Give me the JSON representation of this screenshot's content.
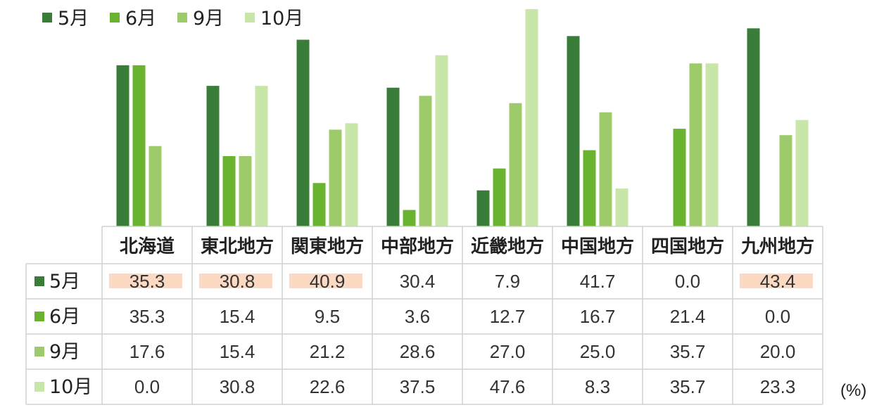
{
  "chart_data": {
    "type": "bar",
    "categories": [
      "北海道",
      "東北地方",
      "関東地方",
      "中部地方",
      "近畿地方",
      "中国地方",
      "四国地方",
      "九州地方"
    ],
    "series": [
      {
        "name": "5月",
        "color": "#3a7d38",
        "values": [
          35.3,
          30.8,
          40.9,
          30.4,
          7.9,
          41.7,
          0.0,
          43.4
        ]
      },
      {
        "name": "6月",
        "color": "#6ab32f",
        "values": [
          35.3,
          15.4,
          9.5,
          3.6,
          12.7,
          16.7,
          21.4,
          0.0
        ]
      },
      {
        "name": "9月",
        "color": "#9dcb6b",
        "values": [
          17.6,
          15.4,
          21.2,
          28.6,
          27.0,
          25.0,
          35.7,
          20.0
        ]
      },
      {
        "name": "10月",
        "color": "#c8e6a8",
        "values": [
          0.0,
          30.8,
          22.6,
          37.5,
          47.6,
          8.3,
          35.7,
          23.3
        ]
      }
    ],
    "ylim": [
      0,
      47.6
    ],
    "unit": "(%)",
    "legend_position": "top-left",
    "highlight_color": "#fcd9c3",
    "highlighted_cells": [
      {
        "series": 0,
        "category": 0
      },
      {
        "series": 0,
        "category": 1
      },
      {
        "series": 0,
        "category": 2
      },
      {
        "series": 0,
        "category": 7
      }
    ]
  }
}
